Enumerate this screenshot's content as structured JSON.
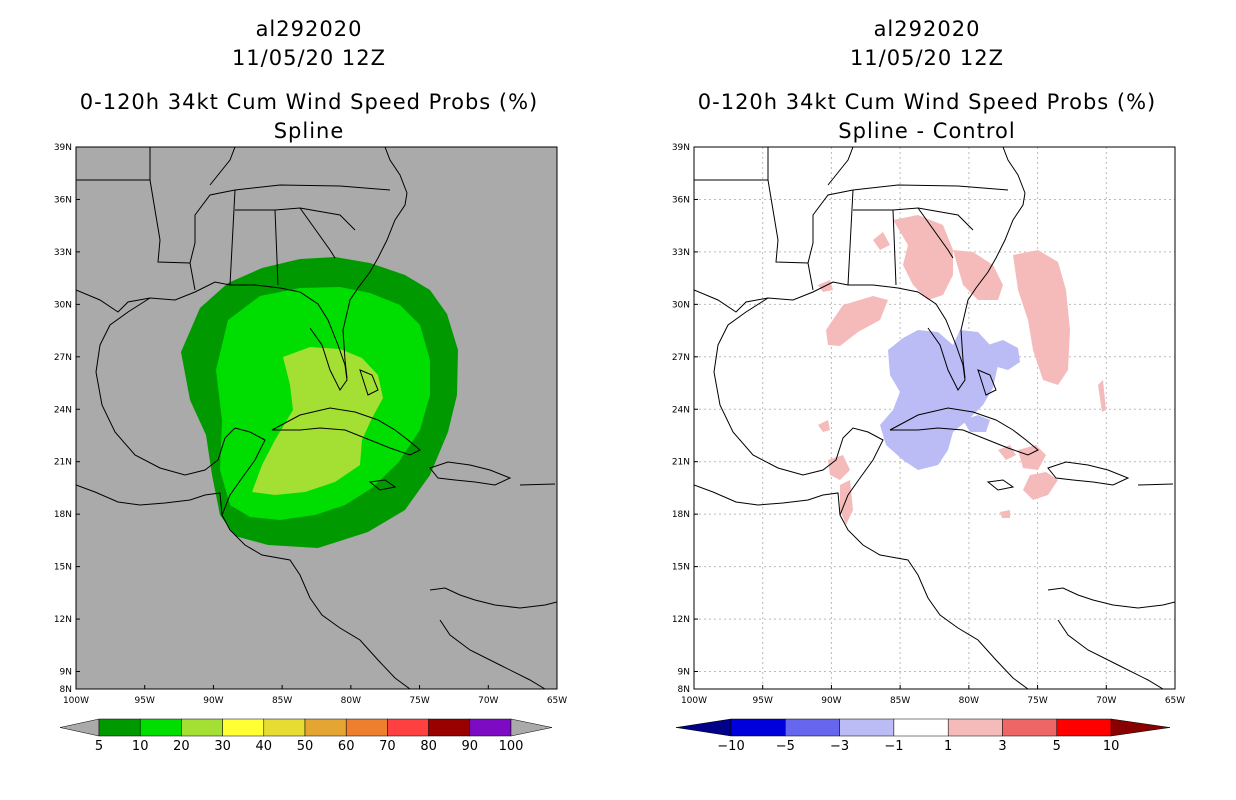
{
  "left": {
    "storm_id": "al292020",
    "datetime": "11/05/20 12Z",
    "title": "0-120h 34kt Cum Wind Speed Probs (%)",
    "subtitle": "Spline",
    "colorbar": {
      "labels": [
        "5",
        "10",
        "20",
        "30",
        "40",
        "50",
        "60",
        "70",
        "80",
        "90",
        "100"
      ],
      "colors": [
        "#009900",
        "#00dd00",
        "#a3e033",
        "#ffff33",
        "#e6dc32",
        "#e5a532",
        "#ee7f2f",
        "#ff4040",
        "#990000",
        "#7d0bc4"
      ]
    }
  },
  "right": {
    "storm_id": "al292020",
    "datetime": "11/05/20 12Z",
    "title": "0-120h 34kt Cum Wind Speed Probs (%)",
    "subtitle": "Spline - Control",
    "colorbar": {
      "labels": [
        "-10",
        "-5",
        "-3",
        "-1",
        "1",
        "3",
        "5",
        "10"
      ],
      "colors": [
        "#0000dd",
        "#6666ee",
        "#bbbbf5",
        "#ffffff",
        "#f5bbbb",
        "#ee6666",
        "#ff0000"
      ],
      "low_color": "#000088",
      "high_color": "#880000"
    }
  },
  "axes": {
    "lat_labels": [
      "39N",
      "36N",
      "33N",
      "30N",
      "27N",
      "24N",
      "21N",
      "18N",
      "15N",
      "12N",
      "9N",
      "8N"
    ],
    "lon_labels": [
      "100W",
      "95W",
      "90W",
      "85W",
      "80W",
      "75W",
      "70W",
      "65W"
    ]
  },
  "colors": {
    "land_ocean_left": "#aaaaaa",
    "coast": "#000000",
    "grid": "#bbbbbb"
  }
}
